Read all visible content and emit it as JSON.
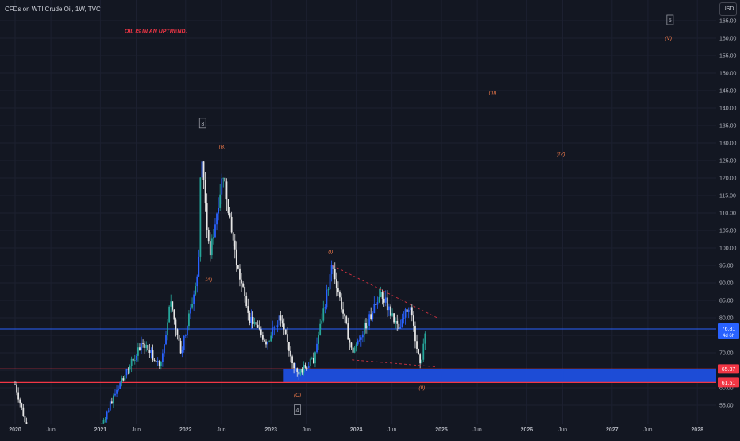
{
  "header": {
    "title": "CFDs on WTI Crude Oil, 1W, TVC",
    "currency": "USD"
  },
  "colors": {
    "background": "#131722",
    "candle_up": "#26a69a",
    "candle_down": "#e6e6e6",
    "candle_blue": "#2962ff",
    "wave_label": "#f57c4b",
    "annotation_red": "#f23645",
    "box_blue": "#1e4fe0",
    "hline_blue": "#2962ff",
    "hline_red": "#f23645"
  },
  "chart_data": {
    "type": "candlestick",
    "title": "CFDs on WTI Crude Oil, 1W, TVC",
    "ylim": [
      50,
      170
    ],
    "y_ticks": [
      "55.00",
      "60.00",
      "65.00",
      "70.00",
      "75.00",
      "80.00",
      "85.00",
      "90.00",
      "95.00",
      "100.00",
      "105.00",
      "110.00",
      "115.00",
      "120.00",
      "125.00",
      "130.00",
      "135.00",
      "140.00",
      "145.00",
      "150.00",
      "155.00",
      "160.00",
      "165.00"
    ],
    "x_ticks": [
      "2020",
      "Jun",
      "2021",
      "Jun",
      "2022",
      "Jun",
      "2023",
      "Jun",
      "2024",
      "Jun",
      "2025",
      "Jun",
      "2026",
      "Jun",
      "2027",
      "Jun",
      "2028"
    ],
    "price_path": [
      {
        "t": 2020.0,
        "p": 61
      },
      {
        "t": 2020.1,
        "p": 52
      },
      {
        "t": 2020.18,
        "p": 42
      },
      {
        "t": 2020.3,
        "p": 30
      },
      {
        "t": 2020.55,
        "p": 40
      },
      {
        "t": 2020.85,
        "p": 40
      },
      {
        "t": 2021.2,
        "p": 60
      },
      {
        "t": 2021.5,
        "p": 73
      },
      {
        "t": 2021.7,
        "p": 66
      },
      {
        "t": 2021.82,
        "p": 84
      },
      {
        "t": 2021.95,
        "p": 70
      },
      {
        "t": 2022.0,
        "p": 76
      },
      {
        "t": 2022.15,
        "p": 93
      },
      {
        "t": 2022.18,
        "p": 129.5
      },
      {
        "t": 2022.28,
        "p": 97
      },
      {
        "t": 2022.44,
        "p": 122
      },
      {
        "t": 2022.6,
        "p": 95
      },
      {
        "t": 2022.75,
        "p": 80
      },
      {
        "t": 2022.95,
        "p": 73
      },
      {
        "t": 2023.1,
        "p": 80
      },
      {
        "t": 2023.3,
        "p": 64
      },
      {
        "t": 2023.5,
        "p": 68
      },
      {
        "t": 2023.72,
        "p": 95
      },
      {
        "t": 2023.95,
        "p": 70
      },
      {
        "t": 2024.3,
        "p": 87
      },
      {
        "t": 2024.5,
        "p": 76
      },
      {
        "t": 2024.62,
        "p": 84
      },
      {
        "t": 2024.75,
        "p": 66
      },
      {
        "t": 2024.82,
        "p": 76.81
      }
    ],
    "last_price": {
      "label": "76.81",
      "value": 76.81,
      "countdown": "4d 6h"
    },
    "horizontal_levels": [
      {
        "value": 76.81,
        "color": "#2962ff"
      },
      {
        "value": 65.37,
        "color": "#f23645",
        "label": "65.37"
      },
      {
        "value": 61.51,
        "color": "#f23645",
        "label": "61.51"
      }
    ],
    "support_zone": {
      "from": 61.51,
      "to": 65.37
    },
    "trendlines": [
      {
        "t1": 2023.72,
        "p1": 95,
        "t2": 2024.95,
        "p2": 80
      },
      {
        "t1": 2023.95,
        "p1": 68,
        "t2": 2024.95,
        "p2": 66
      }
    ],
    "annotations": [
      {
        "text": "OIL IS IN AN UPTREND.",
        "t": 2021.65,
        "p": 161.5,
        "color": "red"
      },
      {
        "text": "3",
        "t": 2022.2,
        "p": 135.5,
        "boxed": true
      },
      {
        "text": "(B)",
        "t": 2022.43,
        "p": 128.5
      },
      {
        "text": "(A)",
        "t": 2022.27,
        "p": 90.5
      },
      {
        "text": "(I)",
        "t": 2023.7,
        "p": 98.5
      },
      {
        "text": "(C)",
        "t": 2023.31,
        "p": 57.5
      },
      {
        "text": "4",
        "t": 2023.31,
        "p": 53.5,
        "boxed": true
      },
      {
        "text": "(II)",
        "t": 2024.77,
        "p": 59.5
      },
      {
        "text": "(III)",
        "t": 2025.6,
        "p": 144
      },
      {
        "text": "(IV)",
        "t": 2026.4,
        "p": 126.5
      },
      {
        "text": "5",
        "t": 2027.68,
        "p": 165,
        "boxed": true
      },
      {
        "text": "(V)",
        "t": 2027.66,
        "p": 159.5
      }
    ]
  }
}
